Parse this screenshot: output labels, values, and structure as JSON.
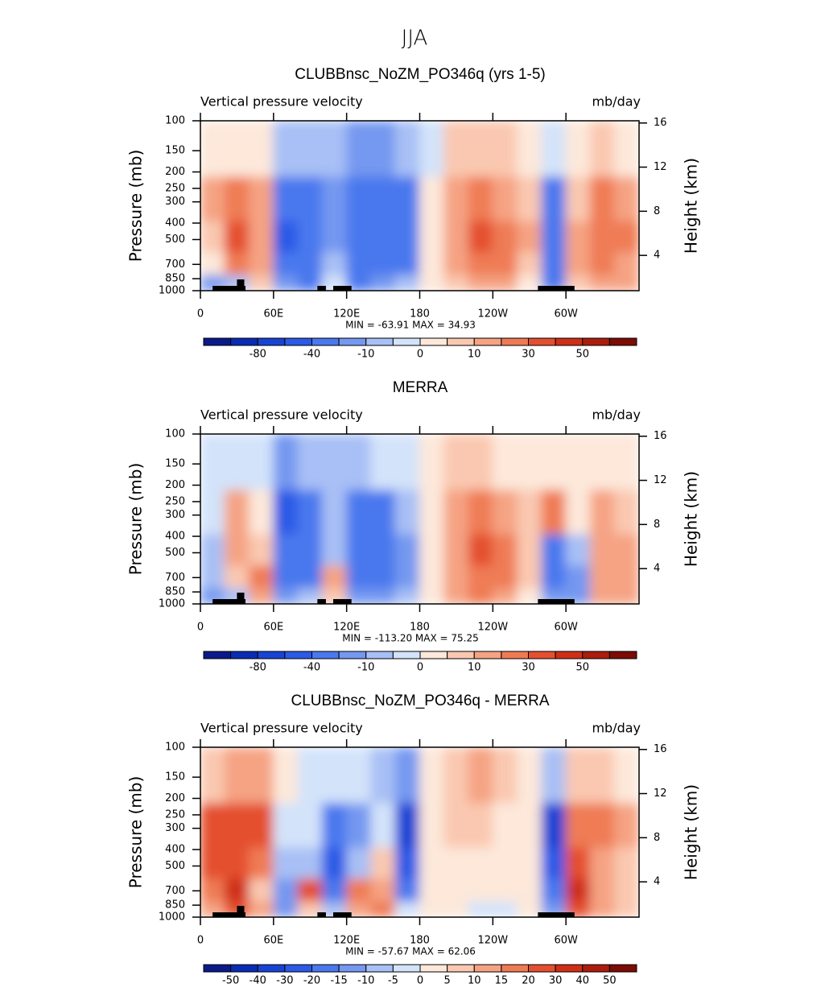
{
  "title": "JJA",
  "chart_data": [
    {
      "type": "contour",
      "title": "CLUBBnsc_NoZM_PO346q (yrs 1-5)",
      "subtitle_left": "Vertical pressure velocity",
      "subtitle_right": "mb/day",
      "ylabel": "Pressure (mb)",
      "y2label": "Height (km)",
      "stats_text": "MIN = -63.91   MAX =  34.93",
      "x": [
        10,
        30,
        50,
        70,
        90,
        110,
        130,
        150,
        170,
        190,
        210,
        230,
        250,
        270,
        290,
        310,
        330,
        350
      ],
      "y": [
        925,
        700,
        500,
        300,
        150
      ],
      "z": [
        [
          -15,
          -10,
          5,
          -20,
          -30,
          -5,
          -30,
          -20,
          -10,
          2,
          5,
          10,
          10,
          3,
          -30,
          5,
          15,
          10
        ],
        [
          3,
          20,
          15,
          -40,
          -35,
          -10,
          -35,
          -35,
          -25,
          3,
          10,
          25,
          20,
          8,
          -40,
          10,
          20,
          15
        ],
        [
          8,
          30,
          15,
          -45,
          -40,
          -15,
          -40,
          -40,
          -30,
          2,
          15,
          30,
          22,
          10,
          -35,
          10,
          25,
          20
        ],
        [
          10,
          25,
          10,
          -40,
          -35,
          -15,
          -35,
          -35,
          -25,
          2,
          15,
          20,
          15,
          8,
          -25,
          8,
          20,
          15
        ],
        [
          3,
          4,
          2,
          -10,
          -10,
          -8,
          -15,
          -15,
          -8,
          -2,
          5,
          8,
          6,
          3,
          -5,
          3,
          5,
          4
        ]
      ],
      "xlim": [
        0,
        360
      ],
      "xticks": [
        0,
        {
          "value": 60,
          "label": "60E"
        },
        {
          "value": 120,
          "label": "120E"
        },
        180,
        {
          "value": 240,
          "label": "120W"
        },
        {
          "value": 300,
          "label": "60W"
        }
      ],
      "ylim": [
        1000,
        100
      ],
      "ylog": true,
      "yticks": [
        100,
        150,
        200,
        250,
        300,
        400,
        500,
        700,
        850,
        1000
      ],
      "y2lim": [
        0.8,
        16.2
      ],
      "y2ticks": [
        4,
        8,
        12,
        16
      ],
      "levels": [
        -100,
        -80,
        -60,
        -40,
        -20,
        -10,
        -5,
        0,
        5,
        10,
        20,
        30,
        40,
        50,
        60
      ],
      "label_stride": 2,
      "colors": [
        "#0b1a8a",
        "#0a2cb5",
        "#1744d4",
        "#2a5ae6",
        "#4a78ee",
        "#7598f0",
        "#a8c0f5",
        "#d3e3fa",
        "#fde8da",
        "#fac8b0",
        "#f5a383",
        "#ef7b55",
        "#e4502f",
        "#cf2f17",
        "#ab1d0c",
        "#7c0c05"
      ]
    },
    {
      "type": "contour",
      "title": "MERRA",
      "subtitle_left": "Vertical pressure velocity",
      "subtitle_right": "mb/day",
      "ylabel": "Pressure (mb)",
      "y2label": "Height (km)",
      "stats_text": "MIN = -113.20   MAX =  75.25",
      "x": [
        10,
        30,
        50,
        70,
        90,
        110,
        130,
        150,
        170,
        190,
        210,
        230,
        250,
        270,
        290,
        310,
        330,
        350
      ],
      "y": [
        925,
        700,
        500,
        300,
        150
      ],
      "z": [
        [
          -20,
          -10,
          15,
          -20,
          -10,
          5,
          -15,
          -20,
          -10,
          3,
          10,
          20,
          15,
          3,
          -20,
          -20,
          10,
          10
        ],
        [
          -10,
          5,
          20,
          -30,
          -25,
          10,
          -30,
          -35,
          -15,
          2,
          15,
          25,
          20,
          5,
          -30,
          -20,
          15,
          12
        ],
        [
          -10,
          15,
          8,
          -40,
          -30,
          -10,
          -35,
          -40,
          -20,
          2,
          18,
          30,
          22,
          5,
          -30,
          -10,
          15,
          12
        ],
        [
          -5,
          10,
          3,
          -45,
          -30,
          -10,
          -30,
          -30,
          -10,
          2,
          15,
          20,
          15,
          5,
          20,
          0,
          10,
          8
        ],
        [
          -3,
          -2,
          -5,
          -15,
          -10,
          -8,
          -8,
          -5,
          -3,
          3,
          5,
          5,
          4,
          3,
          2,
          3,
          4,
          2
        ]
      ],
      "xlim": [
        0,
        360
      ],
      "xticks": [
        0,
        {
          "value": 60,
          "label": "60E"
        },
        {
          "value": 120,
          "label": "120E"
        },
        180,
        {
          "value": 240,
          "label": "120W"
        },
        {
          "value": 300,
          "label": "60W"
        }
      ],
      "ylim": [
        1000,
        100
      ],
      "ylog": true,
      "yticks": [
        100,
        150,
        200,
        250,
        300,
        400,
        500,
        700,
        850,
        1000
      ],
      "y2lim": [
        0.8,
        16.2
      ],
      "y2ticks": [
        4,
        8,
        12,
        16
      ],
      "levels": [
        -100,
        -80,
        -60,
        -40,
        -20,
        -10,
        -5,
        0,
        5,
        10,
        20,
        30,
        40,
        50,
        60
      ],
      "label_stride": 2,
      "colors": [
        "#0b1a8a",
        "#0a2cb5",
        "#1744d4",
        "#2a5ae6",
        "#4a78ee",
        "#7598f0",
        "#a8c0f5",
        "#d3e3fa",
        "#fde8da",
        "#fac8b0",
        "#f5a383",
        "#ef7b55",
        "#e4502f",
        "#cf2f17",
        "#ab1d0c",
        "#7c0c05"
      ]
    },
    {
      "type": "contour",
      "title": "CLUBBnsc_NoZM_PO346q - MERRA",
      "subtitle_left": "Vertical pressure velocity",
      "subtitle_right": "mb/day",
      "ylabel": "Pressure (mb)",
      "y2label": "Height (km)",
      "stats_text": "MIN = -57.67   MAX =  62.06",
      "x": [
        10,
        30,
        50,
        70,
        90,
        110,
        130,
        150,
        170,
        190,
        210,
        230,
        250,
        270,
        290,
        310,
        330,
        350
      ],
      "y": [
        925,
        700,
        500,
        300,
        150
      ],
      "z": [
        [
          10,
          25,
          10,
          -15,
          5,
          -10,
          10,
          15,
          -5,
          2,
          0,
          -5,
          -5,
          0,
          -15,
          25,
          10,
          5
        ],
        [
          15,
          30,
          5,
          -15,
          20,
          -20,
          15,
          10,
          -20,
          2,
          3,
          3,
          2,
          2,
          -20,
          30,
          10,
          5
        ],
        [
          20,
          25,
          15,
          -10,
          -10,
          -25,
          -10,
          5,
          -30,
          3,
          3,
          2,
          3,
          4,
          -30,
          20,
          12,
          8
        ],
        [
          20,
          20,
          25,
          -5,
          -5,
          -20,
          -15,
          -5,
          -35,
          2,
          5,
          5,
          3,
          4,
          -35,
          15,
          15,
          10
        ],
        [
          5,
          10,
          10,
          3,
          -3,
          -5,
          -3,
          -10,
          -15,
          2,
          8,
          10,
          5,
          3,
          -10,
          5,
          5,
          3
        ]
      ],
      "xlim": [
        0,
        360
      ],
      "xticks": [
        0,
        {
          "value": 60,
          "label": "60E"
        },
        {
          "value": 120,
          "label": "120E"
        },
        180,
        {
          "value": 240,
          "label": "120W"
        },
        {
          "value": 300,
          "label": "60W"
        }
      ],
      "ylim": [
        1000,
        100
      ],
      "ylog": true,
      "yticks": [
        100,
        150,
        200,
        250,
        300,
        400,
        500,
        700,
        850,
        1000
      ],
      "y2lim": [
        0.8,
        16.2
      ],
      "y2ticks": [
        4,
        8,
        12,
        16
      ],
      "levels": [
        -50,
        -40,
        -30,
        -20,
        -15,
        -10,
        -5,
        0,
        5,
        10,
        15,
        20,
        30,
        40,
        50
      ],
      "label_stride": 1,
      "colors": [
        "#0b1a8a",
        "#0a2cb5",
        "#1744d4",
        "#2a5ae6",
        "#4a78ee",
        "#7598f0",
        "#a8c0f5",
        "#d3e3fa",
        "#fde8da",
        "#fac8b0",
        "#f5a383",
        "#ef7b55",
        "#e4502f",
        "#cf2f17",
        "#ab1d0c",
        "#7c0c05"
      ]
    }
  ]
}
